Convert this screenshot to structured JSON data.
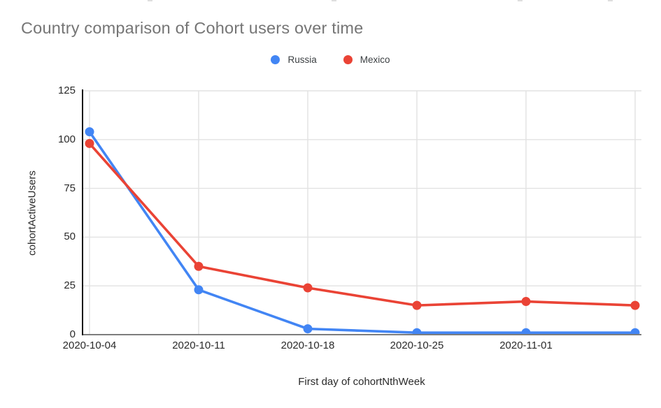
{
  "chart_data": {
    "type": "line",
    "title": "Country comparison of Cohort users over time",
    "xlabel": "First day of cohortNthWeek",
    "ylabel": "cohortActiveUsers",
    "categories": [
      "2020-10-04",
      "2020-10-11",
      "2020-10-18",
      "2020-10-25",
      "2020-11-01",
      ""
    ],
    "series": [
      {
        "name": "Russia",
        "color": "#4285F4",
        "values": [
          104,
          23,
          3,
          1,
          1,
          1
        ]
      },
      {
        "name": "Mexico",
        "color": "#EA4335",
        "values": [
          98,
          35,
          24,
          15,
          17,
          15
        ]
      }
    ],
    "ylim": [
      0,
      125
    ],
    "yticks": [
      0,
      25,
      50,
      75,
      100,
      125
    ],
    "grid": true,
    "legend_position": "top",
    "colors": {
      "gridline": "#e2e2e2",
      "baseline": "#7d7d7d",
      "y_axis_line": "#111111",
      "title_text": "#757575",
      "tick_text": "#2a2a2a"
    }
  }
}
